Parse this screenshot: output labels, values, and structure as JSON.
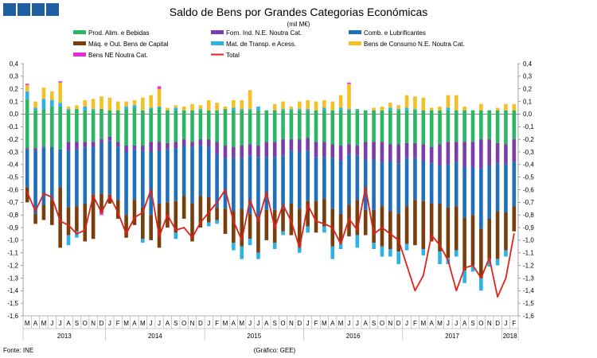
{
  "header_squares": [
    "#1f5fa0",
    "#1f5fa0",
    "#1f5fa0",
    "#1f5fa0"
  ],
  "footer": {
    "source": "Fonte: INE",
    "credit": "(Gráfico: GEE)"
  },
  "chart_data": {
    "type": "bar",
    "stacked": true,
    "title": "Saldo de Bens por Grandes Categorias Económicas",
    "subtitle": "(mil M€)",
    "ylim": [
      -1.6,
      0.4
    ],
    "yticks": [
      "0,4",
      "0,3",
      "0,2",
      "0,1",
      "0,0",
      "-0,1",
      "-0,2",
      "-0,3",
      "-0,4",
      "-0,5",
      "-0,6",
      "-0,7",
      "-0,8",
      "-0,9",
      "-1,0",
      "-1,1",
      "-1,2",
      "-1,3",
      "-1,4",
      "-1,5",
      "-1,6"
    ],
    "categories": [
      "M",
      "A",
      "M",
      "J",
      "J",
      "A",
      "S",
      "O",
      "N",
      "D",
      "J",
      "F",
      "M",
      "A",
      "M",
      "J",
      "J",
      "A",
      "S",
      "O",
      "N",
      "D",
      "J",
      "F",
      "M",
      "A",
      "M",
      "J",
      "J",
      "A",
      "S",
      "O",
      "N",
      "D",
      "J",
      "F",
      "M",
      "A",
      "M",
      "J",
      "J",
      "A",
      "S",
      "O",
      "N",
      "D",
      "J",
      "F",
      "M",
      "A",
      "M",
      "J",
      "J",
      "A",
      "S",
      "O",
      "N",
      "D",
      "J",
      "F"
    ],
    "years": [
      {
        "label": "2013",
        "start": 0,
        "end": 9
      },
      {
        "label": "2014",
        "start": 10,
        "end": 21
      },
      {
        "label": "2015",
        "start": 22,
        "end": 33
      },
      {
        "label": "2016",
        "start": 34,
        "end": 45
      },
      {
        "label": "2017",
        "start": 46,
        "end": 57
      },
      {
        "label": "2018",
        "start": 58,
        "end": 59
      }
    ],
    "legend": [
      {
        "name": "Prod. Alim. e Bebidas",
        "color": "#2ab663"
      },
      {
        "name": "Forn. Ind. N.E. Noutra Cat.",
        "color": "#7b3ea8"
      },
      {
        "name": "Comb. e Lubrificantes",
        "color": "#1f6fba"
      },
      {
        "name": "Máq. e Out. Bens de Capital",
        "color": "#7a3e0c"
      },
      {
        "name": "Mat. de Transp. e Acess.",
        "color": "#2cb2e6"
      },
      {
        "name": "Bens de Consumo N.E. Noutra Cat.",
        "color": "#f4c023"
      },
      {
        "name": "Bens NE Noutra Cat.",
        "color": "#e62bd8"
      },
      {
        "name": "Total",
        "color": "#e32119"
      }
    ],
    "series": [
      {
        "name": "Prod. Alim. e Bebidas",
        "values": [
          0.12,
          0.03,
          0.04,
          0.06,
          0.06,
          0.03,
          0.04,
          0.03,
          0.03,
          0.04,
          0.03,
          0.03,
          0.04,
          0.05,
          0.03,
          0.04,
          0.05,
          0.03,
          0.03,
          0.03,
          0.03,
          0.03,
          0.03,
          0.03,
          0.04,
          0.03,
          0.03,
          0.03,
          0.03,
          0.03,
          0.03,
          0.03,
          0.03,
          0.03,
          0.03,
          0.03,
          0.03,
          0.03,
          0.03,
          0.03,
          0.03,
          0.03,
          0.03,
          0.03,
          0.03,
          0.03,
          0.03,
          0.03,
          0.03,
          0.03,
          0.03,
          0.03,
          0.03,
          0.03,
          0.03,
          0.03,
          0.03,
          0.03,
          0.03,
          0.03
        ]
      },
      {
        "name": "Prod. Alim. e Bebidas (neg)",
        "values": [
          -0.27,
          -0.27,
          -0.26,
          -0.26,
          -0.28,
          -0.22,
          -0.22,
          -0.22,
          -0.22,
          -0.2,
          -0.18,
          -0.22,
          -0.25,
          -0.25,
          -0.25,
          -0.22,
          -0.22,
          -0.23,
          -0.22,
          -0.2,
          -0.22,
          -0.2,
          -0.2,
          -0.22,
          -0.25,
          -0.26,
          -0.25,
          -0.24,
          -0.25,
          -0.22,
          -0.22,
          -0.2,
          -0.2,
          -0.2,
          -0.19,
          -0.22,
          -0.22,
          -0.24,
          -0.25,
          -0.24,
          -0.25,
          -0.22,
          -0.22,
          -0.22,
          -0.24,
          -0.24,
          -0.23,
          -0.23,
          -0.24,
          -0.26,
          -0.24,
          -0.22,
          -0.22,
          -0.22,
          -0.22,
          -0.2,
          -0.2,
          -0.23,
          -0.24,
          -0.2
        ]
      },
      {
        "name": "Forn. Ind. N.E. Noutra Cat.",
        "values": [
          -0.01,
          -0.02,
          -0.01,
          0.0,
          0.0,
          -0.07,
          -0.06,
          -0.04,
          -0.04,
          -0.03,
          -0.03,
          -0.04,
          -0.05,
          -0.03,
          -0.04,
          -0.08,
          -0.07,
          -0.05,
          -0.05,
          -0.05,
          -0.04,
          -0.05,
          -0.06,
          -0.1,
          -0.1,
          -0.09,
          -0.1,
          -0.09,
          -0.09,
          -0.12,
          -0.12,
          -0.13,
          -0.09,
          -0.1,
          -0.1,
          -0.12,
          -0.12,
          -0.11,
          -0.12,
          -0.08,
          -0.08,
          -0.14,
          -0.14,
          -0.16,
          -0.13,
          -0.15,
          -0.12,
          -0.12,
          -0.13,
          -0.13,
          -0.17,
          -0.18,
          -0.16,
          -0.2,
          -0.2,
          -0.23,
          -0.21,
          -0.16,
          -0.16,
          -0.18
        ]
      },
      {
        "name": "Comb. e Lubrificantes",
        "values": [
          -0.3,
          -0.5,
          -0.45,
          -0.42,
          -0.3,
          -0.45,
          -0.45,
          -0.45,
          -0.38,
          -0.4,
          -0.43,
          -0.42,
          -0.5,
          -0.4,
          -0.45,
          -0.5,
          -0.42,
          -0.42,
          -0.42,
          -0.4,
          -0.45,
          -0.4,
          -0.4,
          -0.42,
          -0.4,
          -0.42,
          -0.4,
          -0.46,
          -0.48,
          -0.42,
          -0.42,
          -0.42,
          -0.42,
          -0.45,
          -0.4,
          -0.35,
          -0.33,
          -0.4,
          -0.42,
          -0.4,
          -0.35,
          -0.4,
          -0.4,
          -0.35,
          -0.4,
          -0.4,
          -0.38,
          -0.33,
          -0.32,
          -0.32,
          -0.3,
          -0.34,
          -0.35,
          -0.4,
          -0.38,
          -0.48,
          -0.42,
          -0.38,
          -0.38,
          -0.35
        ]
      },
      {
        "name": "Máq. e Out. Bens de Capital",
        "values": [
          -0.12,
          -0.08,
          -0.12,
          -0.2,
          -0.48,
          -0.22,
          -0.2,
          -0.3,
          -0.35,
          -0.15,
          -0.07,
          -0.15,
          -0.18,
          -0.2,
          -0.25,
          -0.2,
          -0.35,
          -0.2,
          -0.25,
          -0.18,
          -0.3,
          -0.25,
          -0.2,
          -0.1,
          -0.2,
          -0.25,
          -0.3,
          -0.2,
          -0.28,
          -0.24,
          -0.26,
          -0.18,
          -0.25,
          -0.3,
          -0.2,
          -0.25,
          -0.22,
          -0.3,
          -0.22,
          -0.25,
          -0.28,
          -0.2,
          -0.26,
          -0.32,
          -0.3,
          -0.3,
          -0.3,
          -0.36,
          -0.38,
          -0.3,
          -0.38,
          -0.4,
          -0.35,
          -0.42,
          -0.4,
          -0.39,
          -0.32,
          -0.38,
          -0.3,
          -0.2
        ]
      },
      {
        "name": "Mat. de Transp. e Acess.",
        "values": [
          0.06,
          0.02,
          0.08,
          0.05,
          0.03,
          0.01,
          0.0,
          0.03,
          0.01,
          0.0,
          0.0,
          0.0,
          0.02,
          0.02,
          0.0,
          0.01,
          0.01,
          0.0,
          0.02,
          0.0,
          0.0,
          0.01,
          0.0,
          0.0,
          0.0,
          0.02,
          0.01,
          0.01,
          0.03,
          0.0,
          0.0,
          0.01,
          0.01,
          0.01,
          0.01,
          0.0,
          0.02,
          0.0,
          0.02,
          0.01,
          0.01,
          0.0,
          0.0,
          0.0,
          0.02,
          0.01,
          0.02,
          0.01,
          0.0,
          0.0,
          0.0,
          0.02,
          0.0,
          0.0,
          0.0,
          0.0,
          0.0,
          0.0,
          0.0,
          0.0
        ]
      },
      {
        "name": "Mat. de Transp. e Acess. (neg)",
        "values": [
          0.0,
          0.0,
          0.0,
          0.0,
          0.0,
          -0.08,
          -0.05,
          0.0,
          0.0,
          0.0,
          0.0,
          0.0,
          0.0,
          0.0,
          -0.03,
          0.0,
          0.0,
          0.0,
          -0.05,
          0.0,
          0.0,
          0.0,
          -0.03,
          -0.03,
          0.0,
          -0.06,
          -0.1,
          -0.05,
          -0.05,
          0.0,
          -0.05,
          -0.03,
          0.0,
          -0.05,
          -0.05,
          0.0,
          -0.05,
          -0.1,
          -0.06,
          0.0,
          -0.1,
          0.0,
          -0.05,
          -0.08,
          -0.06,
          -0.1,
          -0.05,
          0.0,
          -0.05,
          0.0,
          -0.1,
          -0.05,
          -0.05,
          -0.1,
          -0.05,
          -0.1,
          -0.06,
          -0.05,
          -0.05,
          0.0
        ]
      },
      {
        "name": "Bens de Consumo N.E. Noutra Cat.",
        "values": [
          0.05,
          0.05,
          0.09,
          0.07,
          0.16,
          0.02,
          0.03,
          0.05,
          0.08,
          0.1,
          0.1,
          0.07,
          0.04,
          0.04,
          0.1,
          0.1,
          0.14,
          0.02,
          0.02,
          0.03,
          0.05,
          0.03,
          0.08,
          0.06,
          0.02,
          0.06,
          0.07,
          0.15,
          0.0,
          0.0,
          0.05,
          0.06,
          0.02,
          0.06,
          0.07,
          0.07,
          0.06,
          0.07,
          0.1,
          0.2,
          0.0,
          0.0,
          0.02,
          0.03,
          0.04,
          0.03,
          0.1,
          0.1,
          0.1,
          0.02,
          0.03,
          0.1,
          0.12,
          0.03,
          0.0,
          0.05,
          0.0,
          0.02,
          0.05,
          0.05
        ]
      },
      {
        "name": "Bens NE Noutra Cat.",
        "values": [
          0.01,
          0.0,
          0.0,
          0.0,
          0.01,
          0.0,
          0.0,
          0.0,
          0.0,
          0.0,
          0.0,
          0.0,
          0.0,
          0.0,
          0.0,
          0.0,
          0.02,
          0.0,
          0.0,
          0.0,
          0.0,
          0.0,
          0.0,
          0.0,
          0.0,
          0.0,
          0.0,
          0.0,
          0.0,
          0.0,
          0.0,
          0.0,
          0.0,
          0.0,
          0.0,
          0.0,
          0.0,
          0.0,
          0.0,
          0.01,
          0.0,
          0.0,
          0.0,
          0.0,
          0.0,
          0.0,
          0.0,
          0.0,
          0.0,
          0.0,
          0.0,
          0.0,
          0.0,
          0.0,
          0.0,
          0.0,
          0.0,
          0.0,
          0.0,
          0.0
        ]
      },
      {
        "name": "Bens NE Noutra Cat. (neg)",
        "values": [
          0.0,
          0.0,
          0.0,
          0.0,
          0.0,
          0.0,
          0.0,
          0.0,
          0.0,
          -0.02,
          0.0,
          0.0,
          0.0,
          0.0,
          0.0,
          0.0,
          0.0,
          0.0,
          0.0,
          0.0,
          0.0,
          0.0,
          0.0,
          0.0,
          0.0,
          0.0,
          0.0,
          0.0,
          0.0,
          0.0,
          0.0,
          0.0,
          0.0,
          0.0,
          0.0,
          0.0,
          0.0,
          0.0,
          0.0,
          0.0,
          0.0,
          0.0,
          0.0,
          0.0,
          0.0,
          0.0,
          0.0,
          0.0,
          0.0,
          0.0,
          0.0,
          0.0,
          0.0,
          0.0,
          0.0,
          0.0,
          0.0,
          0.0,
          0.0,
          0.0
        ]
      },
      {
        "name": "Total",
        "values": [
          -0.62,
          -0.77,
          -0.63,
          -0.66,
          -0.85,
          -0.88,
          -0.95,
          -0.92,
          -0.65,
          -0.78,
          -0.65,
          -0.78,
          -0.95,
          -0.82,
          -0.78,
          -0.6,
          -0.97,
          -0.8,
          -0.92,
          -0.9,
          -0.98,
          -0.86,
          -0.78,
          -0.7,
          -0.6,
          -0.85,
          -1.0,
          -0.68,
          -0.85,
          -0.62,
          -0.9,
          -0.72,
          -0.85,
          -1.06,
          -0.72,
          -0.85,
          -0.87,
          -0.9,
          -1.03,
          -0.83,
          -0.92,
          -0.58,
          -0.95,
          -0.9,
          -0.95,
          -1.0,
          -1.2,
          -1.4,
          -1.28,
          -0.96,
          -1.04,
          -1.16,
          -1.4,
          -1.22,
          -1.2,
          -1.3,
          -1.14,
          -1.45,
          -1.3,
          -0.95
        ]
      }
    ]
  }
}
